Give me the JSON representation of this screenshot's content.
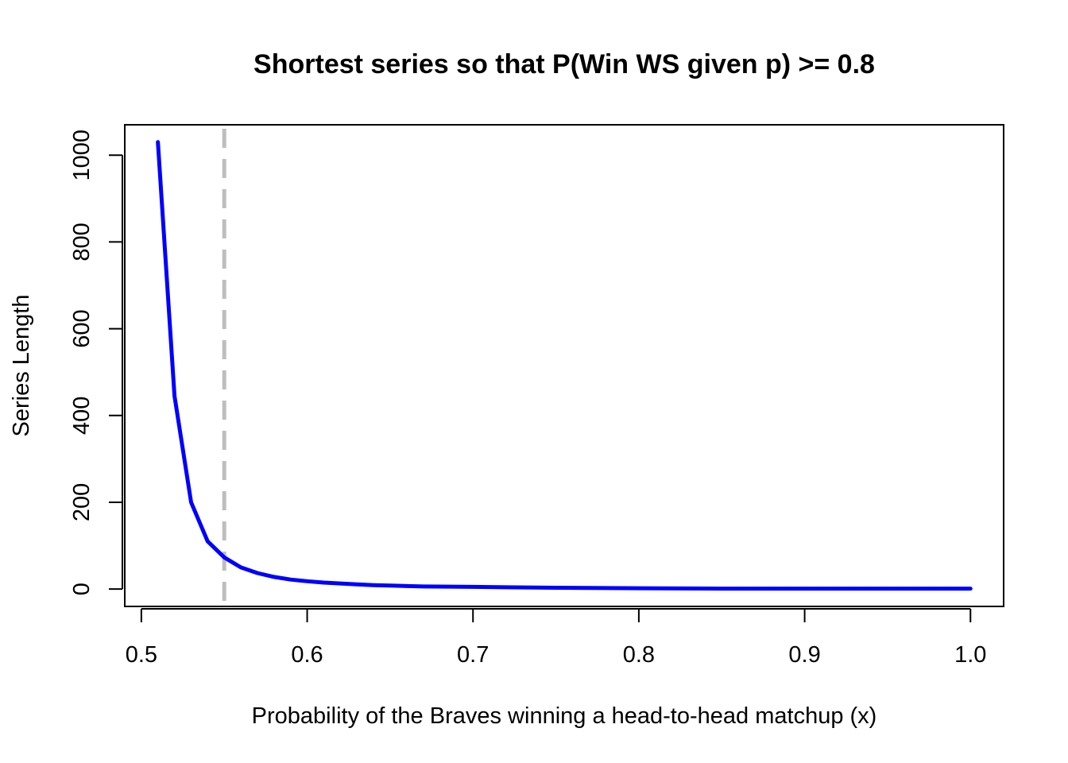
{
  "chart_data": {
    "type": "line",
    "title": "Shortest series so that P(Win WS given p) >= 0.8",
    "xlabel": "Probability of the Braves winning a head-to-head matchup (x)",
    "ylabel": "Series Length",
    "xlim": [
      0.49,
      1.02
    ],
    "ylim": [
      -40,
      1070
    ],
    "x_ticks": [
      0.5,
      0.6,
      0.7,
      0.8,
      0.9,
      1.0
    ],
    "x_tick_labels": [
      "0.5",
      "0.6",
      "0.7",
      "0.8",
      "0.9",
      "1.0"
    ],
    "y_ticks": [
      0,
      200,
      400,
      600,
      800,
      1000
    ],
    "y_tick_labels": [
      "0",
      "200",
      "400",
      "600",
      "800",
      "1000"
    ],
    "grid": false,
    "series": [
      {
        "color": "#0000ff",
        "x": [
          0.51,
          0.52,
          0.53,
          0.54,
          0.55,
          0.56,
          0.57,
          0.58,
          0.59,
          0.6,
          0.61,
          0.62,
          0.63,
          0.64,
          0.65,
          0.67,
          0.7,
          0.75,
          0.8,
          0.85,
          0.9,
          0.95,
          1.0
        ],
        "y": [
          1030,
          445,
          200,
          110,
          73,
          50,
          37,
          28,
          22,
          18,
          15,
          13,
          11,
          9,
          8,
          6,
          5,
          3,
          2,
          1,
          1,
          1,
          1
        ]
      }
    ],
    "reference_line": {
      "orientation": "vertical",
      "x": 0.55,
      "color": "#bebebe",
      "style": "dashed"
    }
  }
}
